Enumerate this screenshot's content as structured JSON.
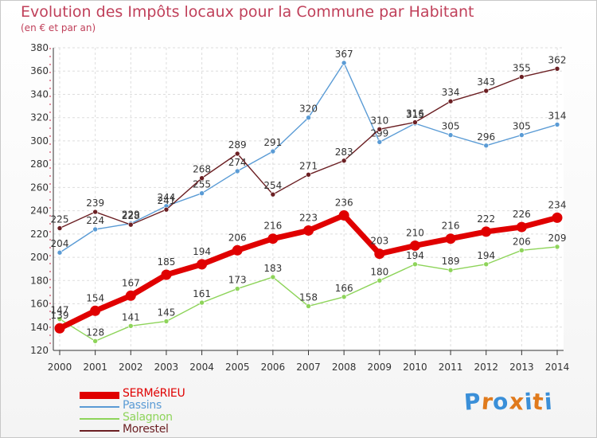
{
  "header": {
    "title": "Evolution des Impôts locaux pour la Commune par Habitant",
    "subtitle": "(en € et par an)"
  },
  "logo": {
    "letters": [
      "P",
      "r",
      "o",
      "x",
      "i",
      "t",
      "i"
    ],
    "colors": [
      "#3a8fd8",
      "#e07a1c",
      "#3a8fd8",
      "#e07a1c",
      "#3a8fd8",
      "#e07a1c",
      "#3a8fd8"
    ]
  },
  "chart_data": {
    "type": "line",
    "title": "Evolution des Impôts locaux pour la Commune par Habitant",
    "subtitle": "(en € et par an)",
    "xlabel": "",
    "ylabel": "",
    "x": [
      "2000",
      "2001",
      "2002",
      "2003",
      "2004",
      "2005",
      "2006",
      "2007",
      "2008",
      "2009",
      "2010",
      "2011",
      "2012",
      "2013",
      "2014"
    ],
    "ylim": [
      120,
      380
    ],
    "yticks": [
      120,
      140,
      160,
      180,
      200,
      220,
      240,
      260,
      280,
      300,
      320,
      340,
      360,
      380
    ],
    "grid": true,
    "series": [
      {
        "name": "SERMéRIEU",
        "color": "#e00000",
        "emphasis": true,
        "values": [
          139,
          154,
          167,
          185,
          194,
          206,
          216,
          223,
          236,
          203,
          210,
          216,
          222,
          226,
          234
        ],
        "labels": [
          "139",
          "154",
          "167",
          "185",
          "194",
          "206",
          "216",
          "223",
          "236",
          "203",
          "210",
          "216",
          "222",
          "226",
          "234"
        ]
      },
      {
        "name": "Passins",
        "color": "#5a9bd5",
        "emphasis": false,
        "values": [
          204,
          224,
          229,
          244,
          255,
          274,
          291,
          320,
          367,
          299,
          315,
          305,
          296,
          305,
          314
        ],
        "labels": [
          "204",
          "224",
          "229",
          "244",
          "255",
          "274",
          "291",
          "320",
          "367",
          "299",
          "315",
          "305",
          "296",
          "305",
          "314"
        ]
      },
      {
        "name": "Salagnon",
        "color": "#8ed45a",
        "emphasis": false,
        "values": [
          147,
          128,
          141,
          145,
          161,
          173,
          183,
          158,
          166,
          180,
          194,
          189,
          194,
          206,
          209
        ],
        "labels": [
          "147",
          "128",
          "141",
          "145",
          "161",
          "173",
          "183",
          "158",
          "166",
          "180",
          "194",
          "189",
          "194",
          "206",
          "209"
        ]
      },
      {
        "name": "Morestel",
        "color": "#6b1f23",
        "emphasis": false,
        "values": [
          225,
          239,
          228,
          241,
          268,
          289,
          254,
          271,
          283,
          310,
          316,
          334,
          343,
          355,
          362
        ],
        "labels": [
          "225",
          "239",
          "228",
          "241",
          "268",
          "289",
          "254",
          "271",
          "283",
          "310",
          "316",
          "334",
          "343",
          "355",
          "362"
        ]
      }
    ],
    "legend_position": "bottom-left"
  }
}
